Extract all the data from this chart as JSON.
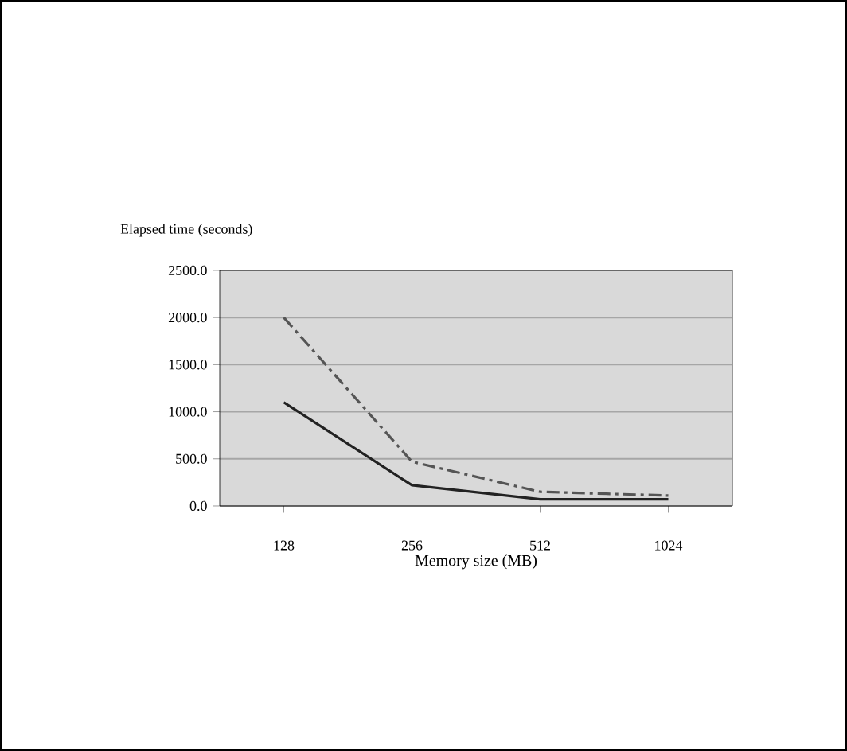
{
  "chart_data": {
    "type": "line",
    "xlabel": "Memory size (MB)",
    "ylabel": "Elapsed time (seconds)",
    "categories": [
      "128",
      "256",
      "512",
      "1024"
    ],
    "series": [
      {
        "color": "#555555",
        "line_style": "dashdotted",
        "values": [
          2000,
          470,
          150,
          110
        ]
      },
      {
        "color": "#222222",
        "line_style": "solid",
        "values": [
          1100,
          220,
          70,
          70
        ]
      }
    ],
    "ylim": [
      0,
      2500
    ],
    "yticks": [
      {
        "value": 0,
        "label": "0.0"
      },
      {
        "value": 500,
        "label": "500.0"
      },
      {
        "value": 1000,
        "label": "1000.0"
      },
      {
        "value": 1500,
        "label": "1500.0"
      },
      {
        "value": 2000,
        "label": "2000.0"
      },
      {
        "value": 2500,
        "label": "2500.0"
      }
    ],
    "grid": "y",
    "marker": "none"
  }
}
